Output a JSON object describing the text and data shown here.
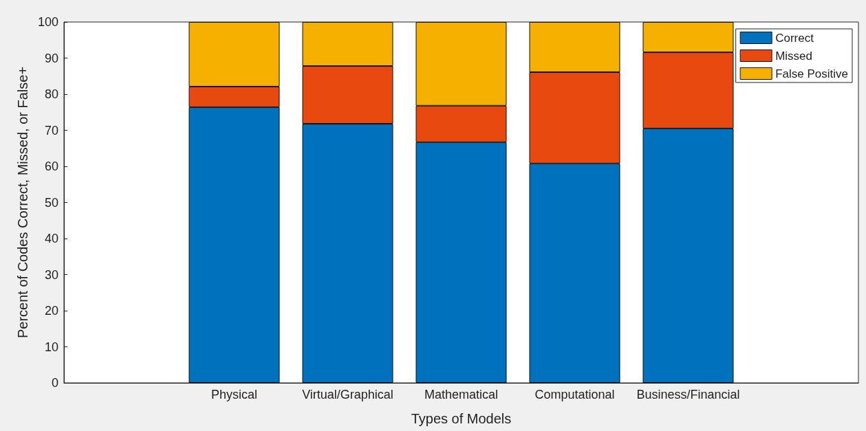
{
  "chart_data": {
    "type": "bar",
    "stacked": true,
    "xlabel": "Types of Models",
    "ylabel": "Percent of Codes Correct, Missed, or False+",
    "categories": [
      null,
      "Physical",
      "Virtual/Graphical",
      "Mathematical",
      "Computational",
      "Business/Financial",
      null
    ],
    "series": [
      {
        "name": "Correct",
        "color": "#0072bd",
        "values": [
          null,
          76.4,
          71.8,
          66.7,
          60.8,
          70.5,
          null
        ]
      },
      {
        "name": "Missed",
        "color": "#e8490f",
        "values": [
          null,
          5.7,
          16.0,
          10.1,
          25.3,
          21.1,
          null
        ]
      },
      {
        "name": "False Positive",
        "color": "#f5b000",
        "values": [
          null,
          17.9,
          12.2,
          23.2,
          13.9,
          8.4,
          null
        ]
      }
    ],
    "ylim": [
      0,
      100
    ],
    "yticks": [
      0,
      10,
      20,
      30,
      40,
      50,
      60,
      70,
      80,
      90,
      100
    ],
    "grid": false,
    "legend": "top right"
  }
}
